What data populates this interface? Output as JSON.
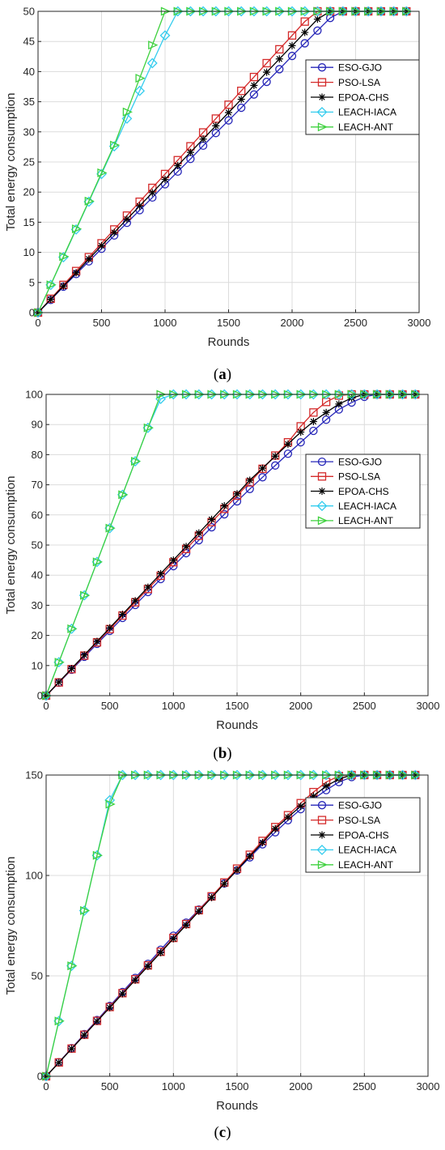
{
  "chart_data": [
    {
      "type": "line",
      "caption_label": "a",
      "xlabel": "Rounds",
      "ylabel": "Total energy consumption",
      "xlim": [
        0,
        3000
      ],
      "ylim": [
        0,
        50
      ],
      "xticks": [
        0,
        500,
        1000,
        1500,
        2000,
        2500,
        3000
      ],
      "yticks": [
        0,
        5,
        10,
        15,
        20,
        25,
        30,
        35,
        40,
        45,
        50
      ],
      "grid": true,
      "legend_position": "top-right",
      "x": [
        0,
        100,
        200,
        300,
        400,
        500,
        600,
        700,
        800,
        900,
        1000,
        1100,
        1200,
        1300,
        1400,
        1500,
        1600,
        1700,
        1800,
        1900,
        2000,
        2100,
        2200,
        2300,
        2400,
        2500,
        2600,
        2700,
        2800,
        2900
      ],
      "series": [
        {
          "name": "ESO-GJO",
          "color": "#2626b8",
          "marker": "circle",
          "values": [
            0,
            2.1,
            4.3,
            6.4,
            8.5,
            10.6,
            12.8,
            14.9,
            17.0,
            19.1,
            21.3,
            23.4,
            25.5,
            27.7,
            29.8,
            31.9,
            34.0,
            36.2,
            38.3,
            40.4,
            42.6,
            44.7,
            46.8,
            48.9,
            50,
            50,
            50,
            50,
            50,
            50
          ]
        },
        {
          "name": "PSO-LSA",
          "color": "#d42a2a",
          "marker": "square",
          "values": [
            0,
            2.3,
            4.6,
            6.9,
            9.2,
            11.5,
            13.8,
            16.1,
            18.4,
            20.7,
            23.0,
            25.3,
            27.6,
            29.9,
            32.2,
            34.5,
            36.8,
            39.1,
            41.4,
            43.7,
            46.0,
            48.3,
            50,
            50,
            50,
            50,
            50,
            50,
            50,
            50
          ]
        },
        {
          "name": "EPOA-CHS",
          "color": "#000000",
          "marker": "asterisk",
          "values": [
            0,
            2.2,
            4.4,
            6.6,
            8.9,
            11.1,
            13.3,
            15.5,
            17.7,
            19.9,
            22.1,
            24.4,
            26.6,
            28.8,
            31.0,
            33.2,
            35.4,
            37.7,
            39.9,
            42.1,
            44.3,
            46.5,
            48.7,
            50,
            50,
            50,
            50,
            50,
            50,
            50
          ]
        },
        {
          "name": "LEACH-IACA",
          "color": "#33ccee",
          "marker": "diamond",
          "values": [
            0,
            4.6,
            9.2,
            13.8,
            18.4,
            23.0,
            27.6,
            32.2,
            36.8,
            41.4,
            46.0,
            50,
            50,
            50,
            50,
            50,
            50,
            50,
            50,
            50,
            50,
            50,
            50,
            50,
            50,
            50,
            50,
            50,
            50,
            50
          ]
        },
        {
          "name": "LEACH-ANT",
          "color": "#3ed13e",
          "marker": "triangle-right",
          "values": [
            0,
            4.6,
            9.3,
            13.9,
            18.5,
            23.2,
            27.8,
            33.3,
            38.9,
            44.4,
            50,
            50,
            50,
            50,
            50,
            50,
            50,
            50,
            50,
            50,
            50,
            50,
            50,
            50,
            50,
            50,
            50,
            50,
            50,
            50
          ]
        }
      ]
    },
    {
      "type": "line",
      "caption_label": "b",
      "xlabel": "Rounds",
      "ylabel": "Total energy consumption",
      "xlim": [
        0,
        3000
      ],
      "ylim": [
        0,
        100
      ],
      "xticks": [
        0,
        500,
        1000,
        1500,
        2000,
        2500,
        3000
      ],
      "yticks": [
        0,
        10,
        20,
        30,
        40,
        50,
        60,
        70,
        80,
        90,
        100
      ],
      "grid": true,
      "legend_position": "center-right",
      "x": [
        0,
        100,
        200,
        300,
        400,
        500,
        600,
        700,
        800,
        900,
        1000,
        1100,
        1200,
        1300,
        1400,
        1500,
        1600,
        1700,
        1800,
        1900,
        2000,
        2100,
        2200,
        2300,
        2400,
        2500,
        2600,
        2700,
        2800,
        2900
      ],
      "series": [
        {
          "name": "ESO-GJO",
          "color": "#2626b8",
          "marker": "circle",
          "values": [
            0,
            4.3,
            8.6,
            12.9,
            17.2,
            21.5,
            25.8,
            30.1,
            34.4,
            38.7,
            43.0,
            47.3,
            51.6,
            55.9,
            60.2,
            64.5,
            68.6,
            72.5,
            76.4,
            80.3,
            84.1,
            87.9,
            91.6,
            95.0,
            97.3,
            99.2,
            100,
            100,
            100,
            100
          ]
        },
        {
          "name": "PSO-LSA",
          "color": "#d42a2a",
          "marker": "square",
          "values": [
            0,
            4.4,
            8.8,
            13.3,
            17.7,
            22.1,
            26.6,
            31.0,
            35.4,
            39.8,
            44.3,
            48.7,
            53.1,
            57.6,
            62.0,
            66.4,
            70.8,
            75.3,
            79.7,
            84.1,
            89.4,
            94.0,
            97.5,
            99.6,
            100,
            100,
            100,
            100,
            100,
            100
          ]
        },
        {
          "name": "EPOA-CHS",
          "color": "#000000",
          "marker": "asterisk",
          "values": [
            0,
            4.5,
            9.0,
            13.5,
            18.0,
            22.5,
            27.0,
            31.5,
            36.0,
            40.5,
            45.0,
            49.5,
            54.0,
            58.5,
            63.0,
            67.0,
            71.5,
            75.5,
            79.5,
            83.5,
            87.5,
            91.0,
            94.0,
            96.8,
            98.8,
            100,
            100,
            100,
            100,
            100
          ]
        },
        {
          "name": "LEACH-IACA",
          "color": "#33ccee",
          "marker": "diamond",
          "values": [
            0,
            11.1,
            22.2,
            33.3,
            44.4,
            55.6,
            66.7,
            77.8,
            88.9,
            98.5,
            100,
            100,
            100,
            100,
            100,
            100,
            100,
            100,
            100,
            100,
            100,
            100,
            100,
            100,
            100,
            100,
            100,
            100,
            100,
            100
          ]
        },
        {
          "name": "LEACH-ANT",
          "color": "#3ed13e",
          "marker": "triangle-right",
          "values": [
            0,
            11.1,
            22.2,
            33.3,
            44.4,
            55.6,
            66.7,
            77.8,
            88.9,
            100,
            100,
            100,
            100,
            100,
            100,
            100,
            100,
            100,
            100,
            100,
            100,
            100,
            100,
            100,
            100,
            100,
            100,
            100,
            100,
            100
          ]
        }
      ]
    },
    {
      "type": "line",
      "caption_label": "c",
      "xlabel": "Rounds",
      "ylabel": "Total energy consumption",
      "xlim": [
        0,
        3000
      ],
      "ylim": [
        0,
        150
      ],
      "xticks": [
        0,
        500,
        1000,
        1500,
        2000,
        2500,
        3000
      ],
      "yticks": [
        0,
        50,
        100,
        150
      ],
      "grid": true,
      "legend_position": "top-right",
      "x": [
        0,
        100,
        200,
        300,
        400,
        500,
        600,
        700,
        800,
        900,
        1000,
        1100,
        1200,
        1300,
        1400,
        1500,
        1600,
        1700,
        1800,
        1900,
        2000,
        2100,
        2200,
        2300,
        2400,
        2500,
        2600,
        2700,
        2800,
        2900
      ],
      "series": [
        {
          "name": "ESO-GJO",
          "color": "#2626b8",
          "marker": "circle",
          "values": [
            0,
            7.0,
            14.0,
            21.0,
            28.0,
            35.0,
            42.0,
            49.0,
            56.0,
            63.0,
            70.0,
            76.5,
            83.0,
            89.5,
            96.0,
            102.5,
            109.0,
            115.5,
            121.5,
            127.5,
            133.0,
            138.0,
            142.5,
            146.5,
            149.0,
            150,
            150,
            150,
            150,
            150
          ]
        },
        {
          "name": "PSO-LSA",
          "color": "#d42a2a",
          "marker": "square",
          "values": [
            0,
            6.9,
            13.8,
            20.7,
            27.6,
            34.5,
            41.4,
            48.3,
            55.2,
            62.0,
            68.9,
            75.8,
            82.7,
            89.6,
            96.5,
            103.4,
            110.3,
            117.2,
            124.1,
            130.0,
            136.0,
            141.5,
            146.5,
            149.5,
            150,
            150,
            150,
            150,
            150,
            150
          ]
        },
        {
          "name": "EPOA-CHS",
          "color": "#000000",
          "marker": "asterisk",
          "values": [
            0,
            6.8,
            13.7,
            20.5,
            27.4,
            34.2,
            41.1,
            47.9,
            54.8,
            61.6,
            68.5,
            75.3,
            82.2,
            89.0,
            95.9,
            102.7,
            109.6,
            116.4,
            123.3,
            129.0,
            134.5,
            139.5,
            144.5,
            148.0,
            150,
            150,
            150,
            150,
            150,
            150
          ]
        },
        {
          "name": "LEACH-IACA",
          "color": "#33ccee",
          "marker": "diamond",
          "values": [
            0,
            27.5,
            55.0,
            82.5,
            110.0,
            137.5,
            150,
            150,
            150,
            150,
            150,
            150,
            150,
            150,
            150,
            150,
            150,
            150,
            150,
            150,
            150,
            150,
            150,
            150,
            150,
            150,
            150,
            150,
            150,
            150
          ]
        },
        {
          "name": "LEACH-ANT",
          "color": "#3ed13e",
          "marker": "triangle-right",
          "values": [
            0,
            27.5,
            55.0,
            82.5,
            110.0,
            135.5,
            150,
            150,
            150,
            150,
            150,
            150,
            150,
            150,
            150,
            150,
            150,
            150,
            150,
            150,
            150,
            150,
            150,
            150,
            150,
            150,
            150,
            150,
            150,
            150
          ]
        }
      ]
    }
  ]
}
